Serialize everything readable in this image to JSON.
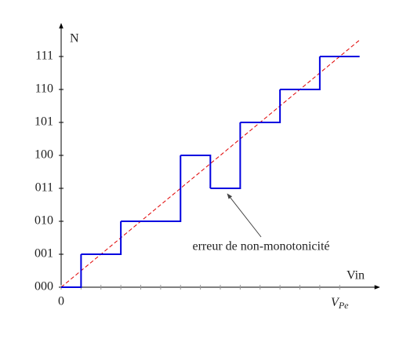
{
  "chart_data": {
    "type": "step",
    "x_label": "Vin",
    "y_label": "N",
    "annotation": "erreur de non-monotonicité",
    "xlim": [
      0,
      16
    ],
    "ylim": [
      0,
      8
    ],
    "xticks": [
      0,
      {
        "value": 14,
        "label": "VPe"
      }
    ],
    "xminor_ticks": [
      1,
      2,
      3,
      4,
      5,
      6,
      7,
      8,
      9,
      10,
      11,
      12,
      13
    ],
    "yticks": [
      {
        "value": 0,
        "label": "000"
      },
      {
        "value": 1,
        "label": "001"
      },
      {
        "value": 2,
        "label": "010"
      },
      {
        "value": 3,
        "label": "011"
      },
      {
        "value": 4,
        "label": "100"
      },
      {
        "value": 5,
        "label": "101"
      },
      {
        "value": 6,
        "label": "110"
      },
      {
        "value": 7,
        "label": "111"
      }
    ],
    "steps": {
      "color": "#0000e0",
      "x": [
        0,
        1,
        3,
        6,
        7.5,
        9,
        11,
        13,
        15
      ],
      "values": [
        0,
        1,
        2,
        4,
        3,
        5,
        6,
        7
      ]
    },
    "ideal": {
      "color": "#e00000",
      "x": [
        0,
        15
      ],
      "values": [
        0,
        7.5
      ]
    }
  }
}
